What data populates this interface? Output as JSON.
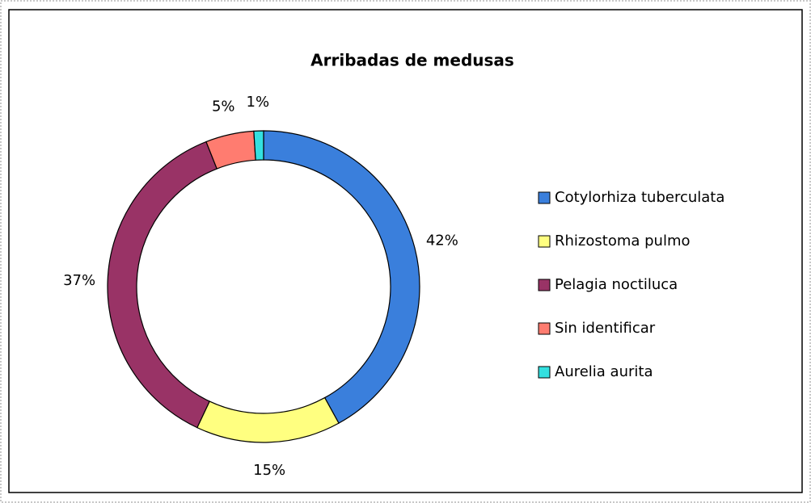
{
  "chart_data": {
    "type": "donut",
    "title": "Arribadas de medusas",
    "categories": [
      "Cotylorhiza tuberculata",
      "Rhizostoma pulmo",
      "Pelagia noctiluca",
      "Sin identificar",
      "Aurelia aurita"
    ],
    "values": [
      42,
      15,
      37,
      5,
      1
    ],
    "value_labels": [
      "42%",
      "15%",
      "37%",
      "5%",
      "1%"
    ],
    "colors": [
      "#3a7fdc",
      "#ffff80",
      "#993366",
      "#ff7c70",
      "#33e0e0"
    ],
    "legend": "right"
  }
}
